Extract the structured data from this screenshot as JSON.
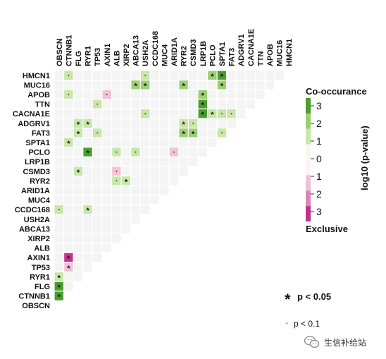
{
  "chart_data": {
    "type": "heatmap",
    "genes": [
      "OBSCN",
      "CTNNB1",
      "FLG",
      "RYR1",
      "TP53",
      "AXIN1",
      "ALB",
      "XIRP2",
      "ABCA13",
      "USH2A",
      "CCDC168",
      "MUC4",
      "ARID1A",
      "RYR2",
      "CSMD3",
      "LRP1B",
      "PCLO",
      "SPTA1",
      "FAT3",
      "ADGRV1",
      "CACNA1E",
      "TTN",
      "APOB",
      "MUC16",
      "HMCN1"
    ],
    "row_order": [
      "HMCN1",
      "MUC16",
      "APOB",
      "TTN",
      "CACNA1E",
      "ADGRV1",
      "FAT3",
      "SPTA1",
      "PCLO",
      "LRP1B",
      "CSMD3",
      "RYR2",
      "ARID1A",
      "MUC4",
      "CCDC168",
      "USH2A",
      "ABCA13",
      "XIRP2",
      "ALB",
      "AXIN1",
      "TP53",
      "RYR1",
      "FLG",
      "CTNNB1",
      "OBSCN"
    ],
    "cells": [
      {
        "row": "HMCN1",
        "col": "CTNNB1",
        "value": 1.3,
        "sig": "dot"
      },
      {
        "row": "HMCN1",
        "col": "USH2A",
        "value": 1.2,
        "sig": "dot"
      },
      {
        "row": "HMCN1",
        "col": "PCLO",
        "value": 1.8,
        "sig": "star"
      },
      {
        "row": "HMCN1",
        "col": "SPTA1",
        "value": 2.5,
        "sig": "star"
      },
      {
        "row": "MUC16",
        "col": "ABCA13",
        "value": 1.5,
        "sig": "star"
      },
      {
        "row": "MUC16",
        "col": "USH2A",
        "value": 1.5,
        "sig": "star"
      },
      {
        "row": "MUC16",
        "col": "RYR2",
        "value": 1.5,
        "sig": "star"
      },
      {
        "row": "MUC16",
        "col": "SPTA1",
        "value": 1.5,
        "sig": "star"
      },
      {
        "row": "APOB",
        "col": "CTNNB1",
        "value": 1.2,
        "sig": "dot"
      },
      {
        "row": "APOB",
        "col": "AXIN1",
        "value": -1.2,
        "sig": "dot"
      },
      {
        "row": "APOB",
        "col": "LRP1B",
        "value": 1.8,
        "sig": "star"
      },
      {
        "row": "TTN",
        "col": "TP53",
        "value": 1.0,
        "sig": "dot"
      },
      {
        "row": "TTN",
        "col": "LRP1B",
        "value": 3.0,
        "sig": "star"
      },
      {
        "row": "CACNA1E",
        "col": "USH2A",
        "value": 1.0,
        "sig": "dot"
      },
      {
        "row": "CACNA1E",
        "col": "LRP1B",
        "value": 3.0,
        "sig": "star"
      },
      {
        "row": "CACNA1E",
        "col": "PCLO",
        "value": 1.3,
        "sig": "star"
      },
      {
        "row": "CACNA1E",
        "col": "SPTA1",
        "value": 1.3,
        "sig": "dot"
      },
      {
        "row": "CACNA1E",
        "col": "FAT3",
        "value": 1.3,
        "sig": "dot"
      },
      {
        "row": "ADGRV1",
        "col": "FLG",
        "value": 1.2,
        "sig": "star"
      },
      {
        "row": "ADGRV1",
        "col": "RYR1",
        "value": 1.2,
        "sig": "star"
      },
      {
        "row": "ADGRV1",
        "col": "RYR2",
        "value": 1.2,
        "sig": "star"
      },
      {
        "row": "ADGRV1",
        "col": "CSMD3",
        "value": 1.2,
        "sig": "dot"
      },
      {
        "row": "FAT3",
        "col": "FLG",
        "value": 1.2,
        "sig": "star"
      },
      {
        "row": "FAT3",
        "col": "TP53",
        "value": 1.1,
        "sig": "dot"
      },
      {
        "row": "FAT3",
        "col": "RYR2",
        "value": 1.5,
        "sig": "star"
      },
      {
        "row": "FAT3",
        "col": "CSMD3",
        "value": 1.5,
        "sig": "star"
      },
      {
        "row": "FAT3",
        "col": "SPTA1",
        "value": 1.1,
        "sig": "dot"
      },
      {
        "row": "SPTA1",
        "col": "CTNNB1",
        "value": 1.2,
        "sig": "star"
      },
      {
        "row": "PCLO",
        "col": "RYR1",
        "value": 3.0,
        "sig": "star"
      },
      {
        "row": "PCLO",
        "col": "ALB",
        "value": 1.1,
        "sig": "dot"
      },
      {
        "row": "PCLO",
        "col": "ABCA13",
        "value": 1.1,
        "sig": "dot"
      },
      {
        "row": "PCLO",
        "col": "ARID1A",
        "value": -1.1,
        "sig": "dot"
      },
      {
        "row": "CSMD3",
        "col": "FLG",
        "value": 1.3,
        "sig": "star"
      },
      {
        "row": "CSMD3",
        "col": "ALB",
        "value": -1.2,
        "sig": "dot"
      },
      {
        "row": "RYR2",
        "col": "ALB",
        "value": 1.2,
        "sig": "dot"
      },
      {
        "row": "RYR2",
        "col": "XIRP2",
        "value": 1.4,
        "sig": "star"
      },
      {
        "row": "CCDC168",
        "col": "OBSCN",
        "value": 1.2,
        "sig": "dot"
      },
      {
        "row": "CCDC168",
        "col": "RYR1",
        "value": 1.2,
        "sig": "star"
      },
      {
        "row": "AXIN1",
        "col": "CTNNB1",
        "value": -2.8,
        "sig": "star"
      },
      {
        "row": "TP53",
        "col": "CTNNB1",
        "value": -1.3,
        "sig": "star"
      },
      {
        "row": "RYR1",
        "col": "OBSCN",
        "value": 1.3,
        "sig": "star"
      },
      {
        "row": "FLG",
        "col": "OBSCN",
        "value": 3.0,
        "sig": "star"
      },
      {
        "row": "CTNNB1",
        "col": "OBSCN",
        "value": 2.5,
        "sig": "star"
      }
    ],
    "legend": {
      "top_label": "Co-occurance",
      "bottom_label": "Exclusive",
      "axis_title": "log10 (p-value)",
      "ticks": [
        "3",
        "2",
        "1",
        "0",
        "1",
        "2",
        "3"
      ],
      "range": [
        -3,
        3
      ]
    },
    "significance_legend": [
      {
        "symbol": "*",
        "label": "p < 0.05"
      },
      {
        "symbol": "·",
        "label": "p < 0.1"
      }
    ],
    "colors": {
      "co_occurrence": [
        "#f5faf1",
        "#c7e6a8",
        "#9ccf70",
        "#4a9e2e"
      ],
      "exclusive": [
        "#fdf2f6",
        "#f1c1d8",
        "#dc86b6",
        "#c2328a"
      ],
      "empty_cell": "#f4f4f4",
      "grid": "#ffffff"
    }
  },
  "watermark": {
    "text": "生信补给站",
    "icon": "wechat-icon"
  }
}
